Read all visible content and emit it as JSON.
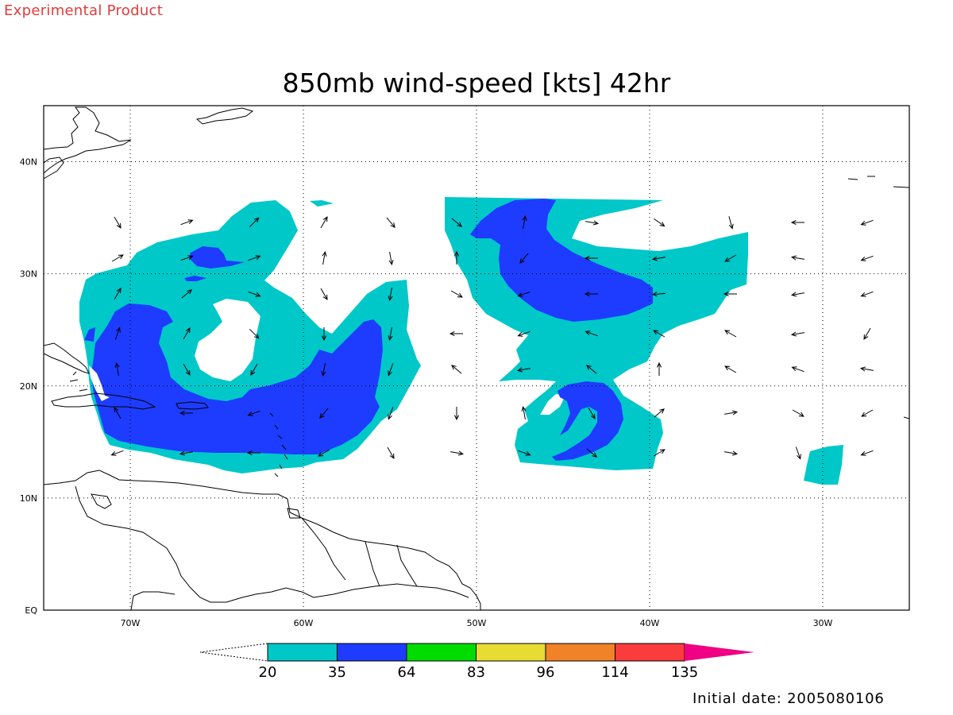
{
  "header": {
    "product_label": "Experimental Product",
    "title": "850mb wind-speed [kts] 42hr"
  },
  "footer": {
    "initial_date": "Initial date: 2005080106"
  },
  "map": {
    "projection": "latlon",
    "lon_range": [
      -75,
      -25
    ],
    "lat_range": [
      0,
      45
    ],
    "lon_ticks": [
      {
        "value": -70,
        "label": "70W"
      },
      {
        "value": -60,
        "label": "60W"
      },
      {
        "value": -50,
        "label": "50W"
      },
      {
        "value": -40,
        "label": "40W"
      },
      {
        "value": -30,
        "label": "30W"
      }
    ],
    "lat_ticks": [
      {
        "value": 0,
        "label": "EQ"
      },
      {
        "value": 10,
        "label": "10N"
      },
      {
        "value": 20,
        "label": "20N"
      },
      {
        "value": 30,
        "label": "30N"
      },
      {
        "value": 40,
        "label": "40N"
      }
    ],
    "grid": true,
    "shade_colors": {
      "20-35": "#00c8c8",
      "35-64": "#1e3cff",
      "64-83": "#00dc00",
      "83-96": "#e6dc32",
      "96-114": "#f08228",
      "114-135": "#fa3c3c",
      "135+": "#f00082"
    }
  },
  "colorbar": {
    "labels": [
      "20",
      "35",
      "64",
      "83",
      "96",
      "114",
      "135"
    ],
    "colors": [
      "#00c8c8",
      "#1e3cff",
      "#00dc00",
      "#e6dc32",
      "#f08228",
      "#fa3c3c",
      "#f00082"
    ]
  }
}
